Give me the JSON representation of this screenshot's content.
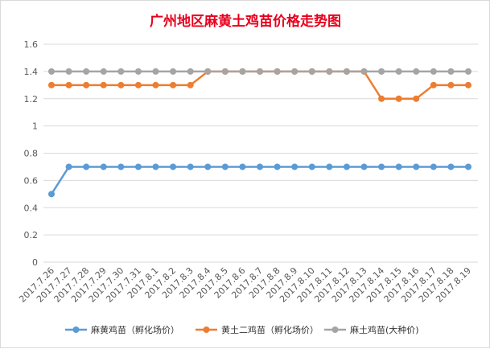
{
  "chart_data": {
    "type": "line",
    "title": "广州地区麻黄土鸡苗价格走势图",
    "categories": [
      "2017.7.26",
      "2017.7.27",
      "2017.7.28",
      "2017.7.29",
      "2017.7.30",
      "2017.7.31",
      "2017.8.1",
      "2017.8.2",
      "2017.8.3",
      "2017.8.4",
      "2017.8.5",
      "2017.8.6",
      "2017.8.7",
      "2017.8.8",
      "2017.8.9",
      "2017.8.10",
      "2017.8.11",
      "2017.8.12",
      "2017.8.13",
      "2017.8.14",
      "2017.8.15",
      "2017.8.16",
      "2017.8.17",
      "2017.8.18",
      "2017.8.19"
    ],
    "ylim": [
      0,
      1.6
    ],
    "yticks": [
      "0",
      "0.2",
      "0.4",
      "0.6",
      "0.8",
      "1",
      "1.2",
      "1.4",
      "1.6"
    ],
    "grid": true,
    "legend_position": "bottom",
    "series": [
      {
        "name": "麻黄鸡苗（孵化场价）",
        "color": "#5b9bd5",
        "values": [
          0.5,
          0.7,
          0.7,
          0.7,
          0.7,
          0.7,
          0.7,
          0.7,
          0.7,
          0.7,
          0.7,
          0.7,
          0.7,
          0.7,
          0.7,
          0.7,
          0.7,
          0.7,
          0.7,
          0.7,
          0.7,
          0.7,
          0.7,
          0.7,
          0.7
        ]
      },
      {
        "name": "黄土二鸡苗（孵化场价）",
        "color": "#ed7d31",
        "values": [
          1.3,
          1.3,
          1.3,
          1.3,
          1.3,
          1.3,
          1.3,
          1.3,
          1.3,
          1.4,
          1.4,
          1.4,
          1.4,
          1.4,
          1.4,
          1.4,
          1.4,
          1.4,
          1.4,
          1.2,
          1.2,
          1.2,
          1.3,
          1.3,
          1.3
        ]
      },
      {
        "name": "麻土鸡苗(大种价)",
        "color": "#a5a5a5",
        "values": [
          1.4,
          1.4,
          1.4,
          1.4,
          1.4,
          1.4,
          1.4,
          1.4,
          1.4,
          1.4,
          1.4,
          1.4,
          1.4,
          1.4,
          1.4,
          1.4,
          1.4,
          1.4,
          1.4,
          1.4,
          1.4,
          1.4,
          1.4,
          1.4,
          1.4
        ]
      }
    ]
  }
}
